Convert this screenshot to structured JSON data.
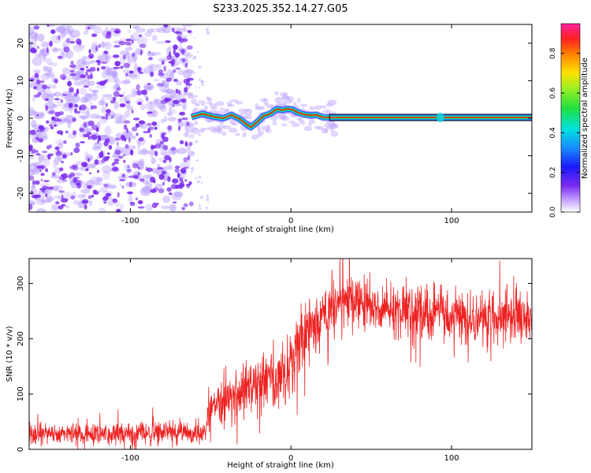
{
  "title": "S233.2025.352.14.27.G05",
  "colors": {
    "snr_line": "#ee2222",
    "ridge_core": "#ff2020",
    "ridge_mid": "#20d020",
    "ridge_outer": "#2060ff",
    "noise": "#7a2cf0",
    "axis": "#000000"
  },
  "chart_data": [
    {
      "type": "heatmap",
      "name": "spectrogram",
      "xlabel": "Height of straight line (km)",
      "ylabel": "Frequency (Hz)",
      "xlim": [
        -163,
        150
      ],
      "ylim": [
        -25,
        25
      ],
      "xticks": [
        -100,
        0,
        100
      ],
      "yticks": [
        -20,
        -10,
        0,
        10,
        20
      ],
      "noise_region_end_km": -62,
      "ridge": {
        "x": [
          -62,
          -55,
          -48,
          -42,
          -37,
          -32,
          -28,
          -25,
          -21,
          -17,
          -13,
          -9,
          -5,
          -2,
          1,
          4,
          8,
          12,
          16,
          20,
          24,
          150
        ],
        "y": [
          0.3,
          1.2,
          0.4,
          0.0,
          0.9,
          -0.2,
          -1.5,
          -2.4,
          -1.0,
          0.6,
          1.2,
          2.4,
          2.2,
          2.5,
          2.3,
          1.6,
          1.0,
          0.8,
          0.9,
          0.2,
          0.2,
          0.2
        ]
      },
      "colorbar": {
        "label": "Normalized spectral amplitude",
        "range": [
          0,
          0.95
        ],
        "ticks": [
          "0.0",
          "0.2",
          "0.4",
          "0.6",
          "0.8"
        ]
      }
    },
    {
      "type": "line",
      "name": "snr",
      "xlabel": "Height of straight line (km)",
      "ylabel": "SNR (10 * v/v)",
      "xlim": [
        -163,
        150
      ],
      "ylim": [
        0,
        345
      ],
      "xticks": [
        -100,
        0,
        100
      ],
      "yticks": [
        0,
        100,
        200,
        300
      ],
      "envelope": {
        "x": [
          -163,
          -53,
          -52,
          -40,
          -25,
          -10,
          0,
          8,
          20,
          30,
          40,
          55,
          75,
          100,
          125,
          150
        ],
        "mean": [
          27,
          30,
          75,
          95,
          110,
          130,
          150,
          210,
          235,
          260,
          270,
          255,
          250,
          240,
          235,
          240
        ],
        "spread": [
          14,
          16,
          30,
          35,
          40,
          45,
          45,
          45,
          45,
          40,
          38,
          35,
          35,
          35,
          35,
          35
        ]
      }
    }
  ]
}
